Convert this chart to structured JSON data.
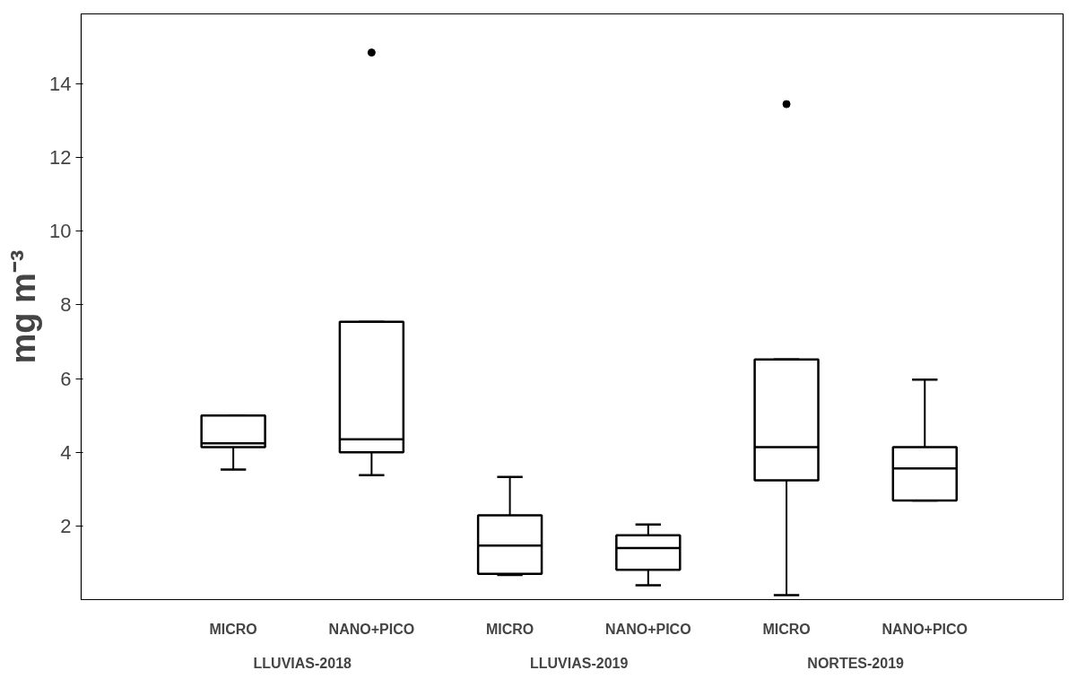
{
  "chart_data": {
    "type": "box",
    "ylabel": "mg m⁻³",
    "categories": [
      "MICRO",
      "NANO+PICO",
      "MICRO",
      "NANO+PICO",
      "MICRO",
      "NANO+PICO"
    ],
    "annotations": [
      "LLUVIAS-2018",
      "LLUVIAS-2019",
      "NORTES-2019"
    ],
    "boxes": [
      {
        "low": 3.53,
        "q1": 4.14,
        "median": 4.24,
        "q3": 5.0,
        "high": 5.0
      },
      {
        "low": 3.38,
        "q1": 4.0,
        "median": 4.35,
        "q3": 7.54,
        "high": 7.54,
        "outliers": [
          14.85
        ]
      },
      {
        "low": 0.67,
        "q1": 0.7,
        "median": 1.47,
        "q3": 2.29,
        "high": 3.33
      },
      {
        "low": 0.39,
        "q1": 0.81,
        "median": 1.4,
        "q3": 1.75,
        "high": 2.04
      },
      {
        "low": 0.12,
        "q1": 3.24,
        "median": 4.14,
        "q3": 6.52,
        "high": 6.52,
        "outliers": [
          13.45
        ]
      },
      {
        "low": 2.69,
        "q1": 2.69,
        "median": 3.56,
        "q3": 4.14,
        "high": 5.97
      }
    ],
    "color": "#000000",
    "ylim": [
      0,
      15.9
    ],
    "yticks": [
      2,
      4,
      6,
      8,
      10,
      12,
      14
    ],
    "grid": false
  }
}
